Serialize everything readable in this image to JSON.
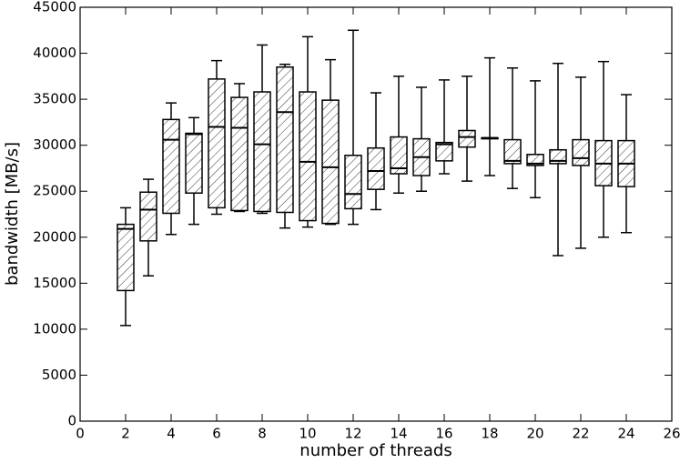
{
  "chart_data": {
    "type": "box",
    "xlabel": "number of threads",
    "ylabel": "bandwidth [MB/s]",
    "x": [
      2,
      3,
      4,
      5,
      6,
      7,
      8,
      9,
      10,
      11,
      12,
      13,
      14,
      15,
      16,
      17,
      18,
      19,
      20,
      21,
      22,
      23,
      24
    ],
    "whislo": [
      10400,
      15800,
      20300,
      21400,
      22500,
      22800,
      22600,
      21000,
      21100,
      21400,
      21400,
      23000,
      24800,
      25000,
      26900,
      26100,
      26700,
      25300,
      24300,
      18000,
      18800,
      20000,
      20500
    ],
    "q1": [
      14200,
      19600,
      22600,
      24800,
      23200,
      22900,
      22800,
      22700,
      21800,
      21500,
      23100,
      25200,
      26900,
      26700,
      28300,
      29800,
      30700,
      28000,
      27800,
      28000,
      27800,
      25600,
      25500
    ],
    "med": [
      20900,
      23000,
      30600,
      31200,
      32000,
      31900,
      30100,
      33600,
      28200,
      27600,
      24700,
      27200,
      27500,
      28700,
      30100,
      30900,
      30800,
      28300,
      28000,
      28300,
      28600,
      28000,
      28000
    ],
    "q3": [
      21400,
      24900,
      32800,
      31300,
      37200,
      35200,
      35800,
      38500,
      35800,
      34900,
      28900,
      29700,
      30900,
      30700,
      30300,
      31600,
      30800,
      30600,
      29000,
      29500,
      30600,
      30500,
      30500
    ],
    "whishi": [
      23200,
      26300,
      34600,
      33000,
      39200,
      36700,
      40900,
      38800,
      41800,
      39300,
      42500,
      35700,
      37500,
      36300,
      37100,
      37500,
      39500,
      38400,
      37000,
      38900,
      37400,
      39100,
      35500
    ],
    "xlim": [
      0,
      26
    ],
    "xticks": [
      0,
      2,
      4,
      6,
      8,
      10,
      12,
      14,
      16,
      18,
      20,
      22,
      24,
      26
    ],
    "ylim": [
      0,
      45000
    ],
    "yticks": [
      0,
      5000,
      10000,
      15000,
      20000,
      25000,
      30000,
      35000,
      40000,
      45000
    ],
    "color": "#000000"
  }
}
